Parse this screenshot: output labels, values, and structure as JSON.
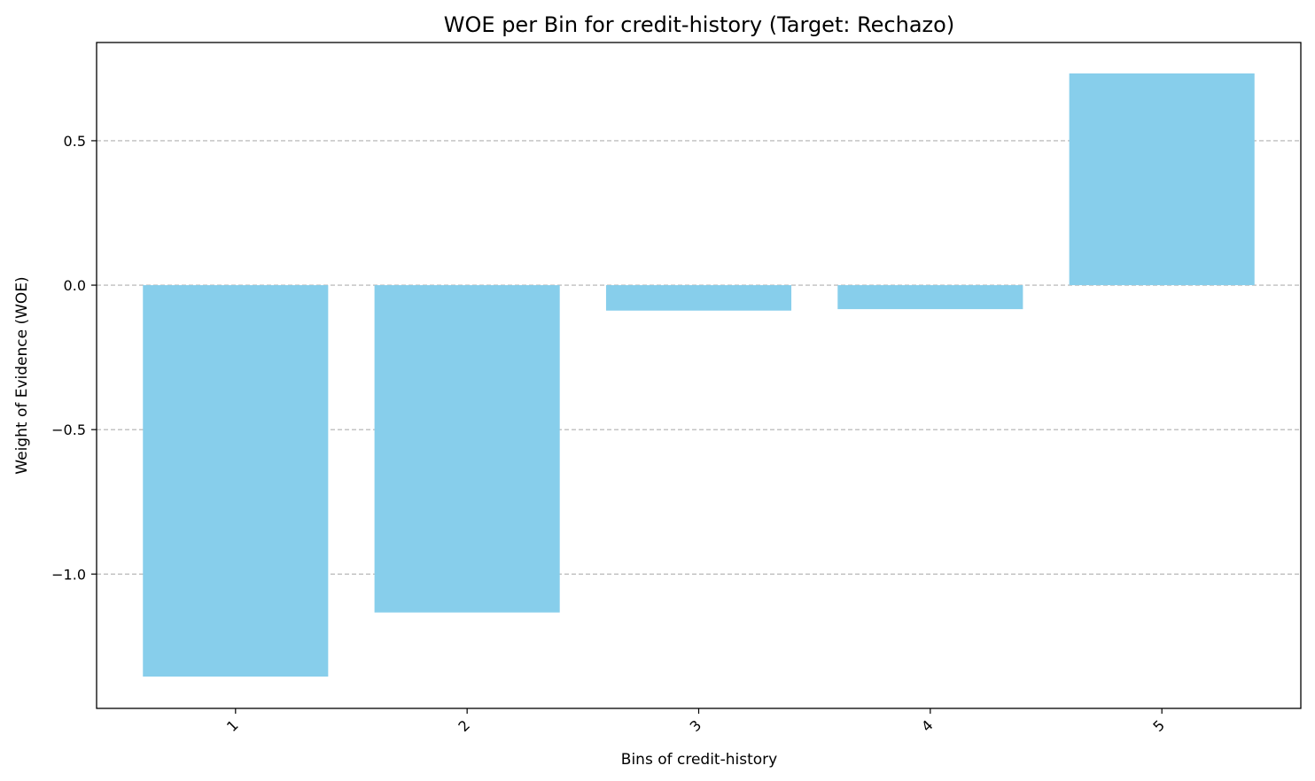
{
  "chart_data": {
    "type": "bar",
    "title": "WOE per Bin for credit-history (Target: Rechazo)",
    "xlabel": "Bins of credit-history",
    "ylabel": "Weight of Evidence (WOE)",
    "categories": [
      "1",
      "2",
      "3",
      "4",
      "5"
    ],
    "values": [
      -1.355,
      -1.133,
      -0.088,
      -0.083,
      0.733
    ],
    "ylim": [
      -1.465,
      0.84
    ],
    "yticks": [
      0.5,
      0.0,
      -0.5,
      -1.0
    ],
    "ytick_labels": [
      "0.5",
      "0.0",
      "−0.5",
      "−1.0"
    ],
    "grid": "y-dashed",
    "bar_color": "#87ceeb",
    "grid_color": "#b0b0b0",
    "x_tick_rotation": "45"
  }
}
